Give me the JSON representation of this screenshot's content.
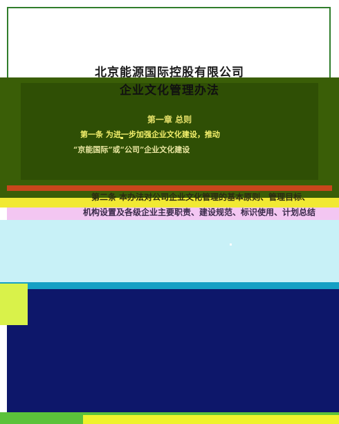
{
  "document": {
    "company_title": "北京能源国际控股有限公司",
    "doc_title": "企业文化管理办法",
    "chapter_heading": "第一章 总则",
    "article_1_line_1": "第一条 为进一步加强企业文化建设，推动",
    "article_1_line_2": "“京能国际”或“公司”企业文化建设",
    "article_2_line_1": "第二条 本办法对公司企业文化管理的基本原则、管理目标、",
    "article_2_line_2": "机构设置及各级企业主要职责、建设规范、标识使用、计划总结"
  },
  "colors": {
    "green_band": "#3a5e07",
    "cyan_band": "#c8f1f7",
    "navy_band": "#0d176a",
    "frame_border": "#2f7d2a"
  }
}
